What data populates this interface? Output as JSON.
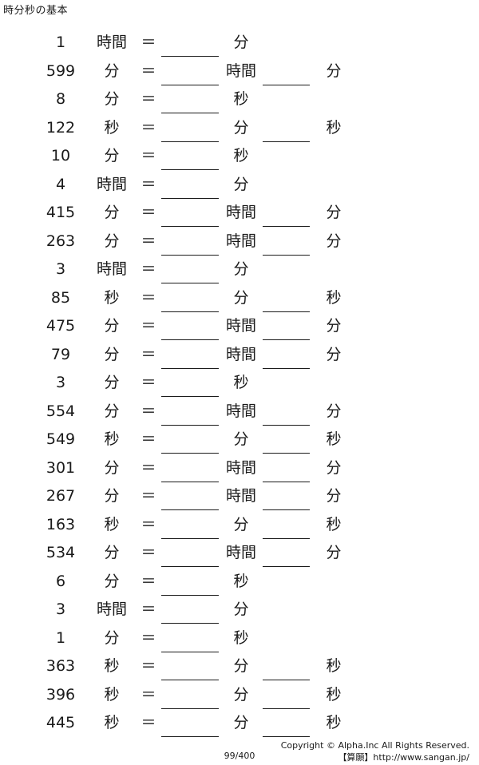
{
  "title": "時分秒の基本",
  "problems": [
    {
      "num": "1",
      "u1": "時間",
      "eq": "＝",
      "u2": "分",
      "u3": ""
    },
    {
      "num": "599",
      "u1": "分",
      "eq": "＝",
      "u2": "時間",
      "u3": "分"
    },
    {
      "num": "8",
      "u1": "分",
      "eq": "＝",
      "u2": "秒",
      "u3": ""
    },
    {
      "num": "122",
      "u1": "秒",
      "eq": "＝",
      "u2": "分",
      "u3": "秒"
    },
    {
      "num": "10",
      "u1": "分",
      "eq": "＝",
      "u2": "秒",
      "u3": ""
    },
    {
      "num": "4",
      "u1": "時間",
      "eq": "＝",
      "u2": "分",
      "u3": ""
    },
    {
      "num": "415",
      "u1": "分",
      "eq": "＝",
      "u2": "時間",
      "u3": "分"
    },
    {
      "num": "263",
      "u1": "分",
      "eq": "＝",
      "u2": "時間",
      "u3": "分"
    },
    {
      "num": "3",
      "u1": "時間",
      "eq": "＝",
      "u2": "分",
      "u3": ""
    },
    {
      "num": "85",
      "u1": "秒",
      "eq": "＝",
      "u2": "分",
      "u3": "秒"
    },
    {
      "num": "475",
      "u1": "分",
      "eq": "＝",
      "u2": "時間",
      "u3": "分"
    },
    {
      "num": "79",
      "u1": "分",
      "eq": "＝",
      "u2": "時間",
      "u3": "分"
    },
    {
      "num": "3",
      "u1": "分",
      "eq": "＝",
      "u2": "秒",
      "u3": ""
    },
    {
      "num": "554",
      "u1": "分",
      "eq": "＝",
      "u2": "時間",
      "u3": "分"
    },
    {
      "num": "549",
      "u1": "秒",
      "eq": "＝",
      "u2": "分",
      "u3": "秒"
    },
    {
      "num": "301",
      "u1": "分",
      "eq": "＝",
      "u2": "時間",
      "u3": "分"
    },
    {
      "num": "267",
      "u1": "分",
      "eq": "＝",
      "u2": "時間",
      "u3": "分"
    },
    {
      "num": "163",
      "u1": "秒",
      "eq": "＝",
      "u2": "分",
      "u3": "秒"
    },
    {
      "num": "534",
      "u1": "分",
      "eq": "＝",
      "u2": "時間",
      "u3": "分"
    },
    {
      "num": "6",
      "u1": "分",
      "eq": "＝",
      "u2": "秒",
      "u3": ""
    },
    {
      "num": "3",
      "u1": "時間",
      "eq": "＝",
      "u2": "分",
      "u3": ""
    },
    {
      "num": "1",
      "u1": "分",
      "eq": "＝",
      "u2": "秒",
      "u3": ""
    },
    {
      "num": "363",
      "u1": "秒",
      "eq": "＝",
      "u2": "分",
      "u3": "秒"
    },
    {
      "num": "396",
      "u1": "秒",
      "eq": "＝",
      "u2": "分",
      "u3": "秒"
    },
    {
      "num": "445",
      "u1": "秒",
      "eq": "＝",
      "u2": "分",
      "u3": "秒"
    }
  ],
  "footer": {
    "copyright": "Copyright © Alpha.Inc All Rights Reserved.",
    "site": "【算願】http://www.sangan.jp/",
    "page": "99/400"
  }
}
